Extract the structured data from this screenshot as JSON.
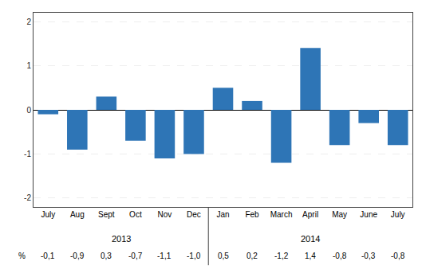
{
  "chart_data": {
    "type": "bar",
    "categories": [
      "July",
      "Aug",
      "Sept",
      "Oct",
      "Nov",
      "Dec",
      "Jan",
      "Feb",
      "March",
      "April",
      "May",
      "June",
      "July"
    ],
    "values": [
      -0.1,
      -0.9,
      0.3,
      -0.7,
      -1.1,
      -1.0,
      0.5,
      0.2,
      -1.2,
      1.4,
      -0.8,
      -0.3,
      -0.8
    ],
    "value_labels": [
      "-0,1",
      "-0,9",
      "0,3",
      "-0,7",
      "-1,1",
      "-1,0",
      "0,5",
      "0,2",
      "-1,2",
      "1,4",
      "-0,8",
      "-0,3",
      "-0,8"
    ],
    "data_labels": true,
    "color": "#2E75B6",
    "ylim": [
      -2.2,
      2.2
    ],
    "yticks": [
      -2,
      -1,
      0,
      1,
      2
    ],
    "grid": true,
    "annotations": [
      {
        "text": "2013",
        "category": "July"
      },
      {
        "text": "2014",
        "category": "Jan"
      },
      {
        "text": "%"
      }
    ]
  }
}
